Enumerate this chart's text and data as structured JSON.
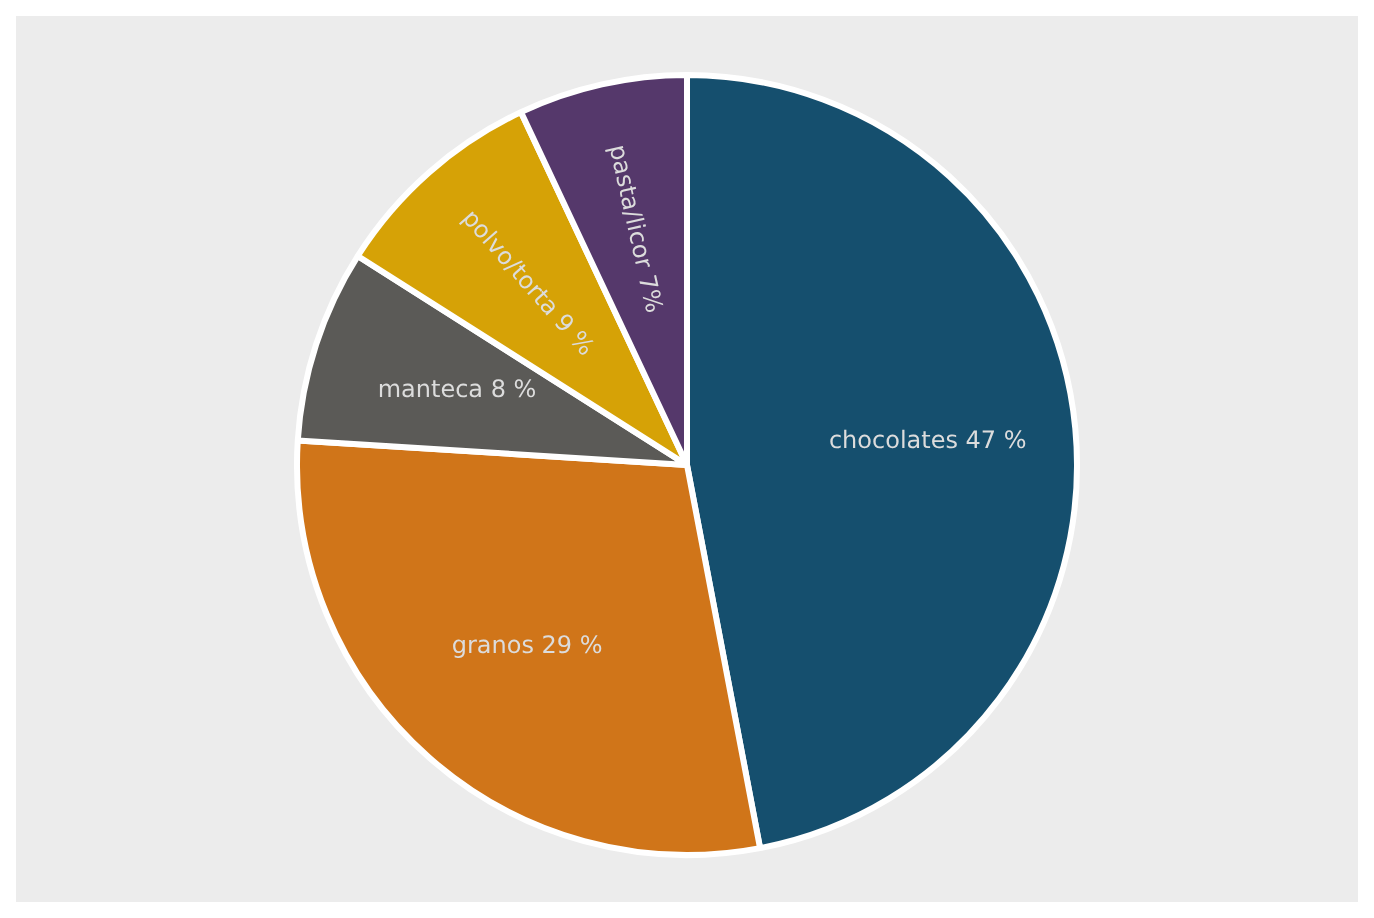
{
  "chart_data": {
    "type": "pie",
    "categories": [
      "chocolates",
      "granos",
      "manteca",
      "polvo/torta",
      "pasta/licor"
    ],
    "values": [
      47,
      29,
      8,
      9,
      7
    ],
    "colors": [
      "#154f6e",
      "#d07519",
      "#5b5a57",
      "#d6a206",
      "#55386b"
    ],
    "value_labels": [
      "47 %",
      "29 %",
      "8 %",
      "9 %",
      "7%"
    ],
    "legend": false
  }
}
